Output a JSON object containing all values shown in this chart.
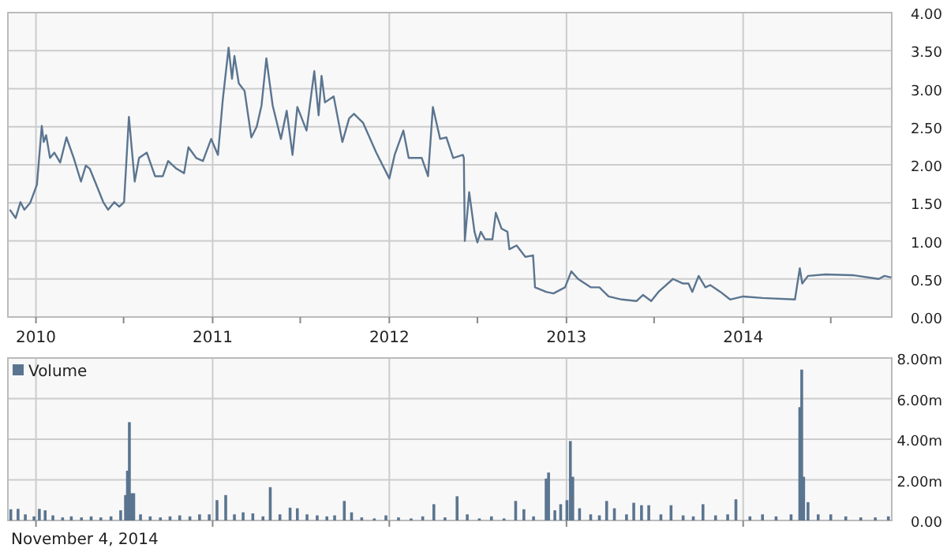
{
  "chart_data": [
    {
      "type": "line",
      "xlim": [
        "2009-11-04",
        "2014-11-04"
      ],
      "ylim": [
        0,
        4
      ],
      "xticks": [
        "2010",
        {
          "value": "2010-07-01",
          "label": null
        },
        "2011",
        {
          "value": "2011-07-01",
          "label": null
        },
        "2012",
        {
          "value": "2012-07-01",
          "label": null
        },
        "2013",
        {
          "value": "2013-07-01",
          "label": null
        },
        "2014",
        {
          "value": "2014-07-01",
          "label": null
        }
      ],
      "yticks": [
        {
          "value": 0,
          "label": "0.00"
        },
        {
          "value": 0.5,
          "label": "0.50"
        },
        {
          "value": 1,
          "label": "1.00"
        },
        {
          "value": 1.5,
          "label": "1.50"
        },
        {
          "value": 2,
          "label": "2.00"
        },
        {
          "value": 2.5,
          "label": "2.50"
        },
        {
          "value": 3,
          "label": "3.00"
        },
        {
          "value": 3.5,
          "label": "3.50"
        },
        {
          "value": 4,
          "label": "4.00"
        }
      ],
      "grid": true,
      "marker": "none",
      "line_style": "solid",
      "series": [
        {
          "color": "#5b7590",
          "x": [
            "2009-11-08",
            "2009-11-20",
            "2009-11-30",
            "2009-12-08",
            "2009-12-20",
            "2010-01-03",
            "2010-01-13",
            "2010-01-17",
            "2010-01-22",
            "2010-01-30",
            "2010-02-08",
            "2010-02-20",
            "2010-03-05",
            "2010-03-20",
            "2010-04-04",
            "2010-04-14",
            "2010-04-22",
            "2010-05-03",
            "2010-05-20",
            "2010-05-30",
            "2010-06-12",
            "2010-06-22",
            "2010-07-02",
            "2010-07-12",
            "2010-07-24",
            "2010-08-02",
            "2010-08-18",
            "2010-09-04",
            "2010-09-20",
            "2010-10-01",
            "2010-10-18",
            "2010-11-03",
            "2010-11-12",
            "2010-11-28",
            "2010-12-12",
            "2010-12-29",
            "2011-01-12",
            "2011-01-22",
            "2011-02-03",
            "2011-02-10",
            "2011-02-15",
            "2011-02-24",
            "2011-03-08",
            "2011-03-22",
            "2011-04-02",
            "2011-04-12",
            "2011-04-22",
            "2011-05-05",
            "2011-05-22",
            "2011-06-03",
            "2011-06-15",
            "2011-06-25",
            "2011-07-14",
            "2011-07-30",
            "2011-08-08",
            "2011-08-14",
            "2011-08-21",
            "2011-09-08",
            "2011-09-26",
            "2011-10-10",
            "2011-10-20",
            "2011-11-08",
            "2011-12-05",
            "2012-01-01",
            "2012-01-12",
            "2012-01-30",
            "2012-02-10",
            "2012-03-08",
            "2012-03-21",
            "2012-03-31",
            "2012-04-15",
            "2012-04-28",
            "2012-05-12",
            "2012-06-01",
            "2012-06-03",
            "2012-06-05",
            "2012-06-14",
            "2012-06-25",
            "2012-07-01",
            "2012-07-08",
            "2012-07-17",
            "2012-08-01",
            "2012-08-08",
            "2012-08-20",
            "2012-09-01",
            "2012-09-05",
            "2012-09-20",
            "2012-10-08",
            "2012-10-24",
            "2012-10-28",
            "2012-11-20",
            "2012-12-05",
            "2012-12-29",
            "2013-01-11",
            "2013-01-25",
            "2013-02-20",
            "2013-03-10",
            "2013-03-29",
            "2013-04-25",
            "2013-05-26",
            "2013-06-08",
            "2013-06-25",
            "2013-07-10",
            "2013-08-09",
            "2013-08-30",
            "2013-09-10",
            "2013-09-18",
            "2013-10-01",
            "2013-10-15",
            "2013-10-25",
            "2013-11-15",
            "2013-12-05",
            "2014-01-01",
            "2014-02-10",
            "2014-04-18",
            "2014-04-28",
            "2014-05-03",
            "2014-05-15",
            "2014-06-20",
            "2014-08-15",
            "2014-10-08",
            "2014-10-20",
            "2014-11-03"
          ],
          "values": [
            1.41,
            1.3,
            1.51,
            1.41,
            1.5,
            1.74,
            2.51,
            2.3,
            2.39,
            2.09,
            2.16,
            2.03,
            2.36,
            2.09,
            1.78,
            1.99,
            1.95,
            1.78,
            1.51,
            1.41,
            1.51,
            1.45,
            1.51,
            2.63,
            1.78,
            2.09,
            2.16,
            1.85,
            1.85,
            2.05,
            1.95,
            1.89,
            2.23,
            2.09,
            2.05,
            2.34,
            2.13,
            2.86,
            3.54,
            3.13,
            3.43,
            3.07,
            2.97,
            2.36,
            2.5,
            2.78,
            3.4,
            2.78,
            2.34,
            2.71,
            2.13,
            2.76,
            2.45,
            3.23,
            2.65,
            3.17,
            2.82,
            2.9,
            2.3,
            2.61,
            2.67,
            2.55,
            2.16,
            1.82,
            2.13,
            2.45,
            2.09,
            2.09,
            1.85,
            2.76,
            2.34,
            2.36,
            2.09,
            2.13,
            2.09,
            1.0,
            1.64,
            1.12,
            0.98,
            1.12,
            1.02,
            1.02,
            1.37,
            1.16,
            1.12,
            0.89,
            0.94,
            0.79,
            0.81,
            0.39,
            0.33,
            0.31,
            0.39,
            0.6,
            0.5,
            0.39,
            0.39,
            0.27,
            0.23,
            0.21,
            0.29,
            0.21,
            0.33,
            0.5,
            0.44,
            0.44,
            0.33,
            0.54,
            0.39,
            0.42,
            0.33,
            0.23,
            0.27,
            0.25,
            0.23,
            0.64,
            0.44,
            0.54,
            0.56,
            0.55,
            0.5,
            0.54,
            0.52
          ]
        }
      ]
    },
    {
      "type": "bar",
      "xlim": [
        "2009-11-04",
        "2014-11-04"
      ],
      "ylim": [
        0,
        8
      ],
      "xticks": [
        "2010",
        "2011",
        "2012",
        "2013",
        "2014"
      ],
      "yticks": [
        {
          "value": 0,
          "label": "0.00"
        },
        {
          "value": 2,
          "label": "2.00m"
        },
        {
          "value": 4,
          "label": "4.00m"
        },
        {
          "value": 6,
          "label": "6.00m"
        },
        {
          "value": 8,
          "label": "8.00m"
        }
      ],
      "tick_labels": "y",
      "grid": true,
      "legend": "top left",
      "annotations": [
        "November 4, 2014"
      ],
      "series": [
        {
          "name": "Volume",
          "color": "#5b7590",
          "x": [
            "2009-11-10",
            "2009-11-25",
            "2009-12-10",
            "2009-12-28",
            "2010-01-08",
            "2010-01-20",
            "2010-02-05",
            "2010-02-25",
            "2010-03-15",
            "2010-04-05",
            "2010-04-25",
            "2010-05-15",
            "2010-06-05",
            "2010-06-25",
            "2010-07-05",
            "2010-07-09",
            "2010-07-13",
            "2010-07-17",
            "2010-07-22",
            "2010-08-05",
            "2010-08-25",
            "2010-09-15",
            "2010-10-05",
            "2010-10-25",
            "2010-11-15",
            "2010-12-05",
            "2010-12-25",
            "2011-01-10",
            "2011-01-28",
            "2011-02-15",
            "2011-03-05",
            "2011-03-25",
            "2011-04-15",
            "2011-04-30",
            "2011-05-20",
            "2011-06-10",
            "2011-06-25",
            "2011-07-15",
            "2011-08-05",
            "2011-08-25",
            "2011-09-10",
            "2011-09-30",
            "2011-10-15",
            "2011-11-05",
            "2011-12-01",
            "2011-12-25",
            "2012-01-20",
            "2012-02-15",
            "2012-03-10",
            "2012-04-02",
            "2012-04-25",
            "2012-05-20",
            "2012-06-10",
            "2012-07-05",
            "2012-07-30",
            "2012-08-25",
            "2012-09-18",
            "2012-10-05",
            "2012-10-25",
            "2012-11-20",
            "2012-11-25",
            "2012-12-08",
            "2012-12-20",
            "2013-01-02",
            "2013-01-09",
            "2013-01-14",
            "2013-01-28",
            "2013-02-20",
            "2013-03-10",
            "2013-03-25",
            "2013-04-10",
            "2013-05-05",
            "2013-05-20",
            "2013-06-05",
            "2013-06-20",
            "2013-07-15",
            "2013-08-05",
            "2013-08-30",
            "2013-09-20",
            "2013-10-10",
            "2013-11-05",
            "2013-11-30",
            "2013-12-17",
            "2014-01-15",
            "2014-02-10",
            "2014-03-10",
            "2014-04-10",
            "2014-04-28",
            "2014-05-02",
            "2014-05-06",
            "2014-05-15",
            "2014-06-05",
            "2014-07-01",
            "2014-08-01",
            "2014-09-01",
            "2014-10-01",
            "2014-10-28"
          ],
          "values": [
            0.55,
            0.57,
            0.3,
            0.2,
            0.57,
            0.5,
            0.25,
            0.15,
            0.2,
            0.15,
            0.2,
            0.15,
            0.2,
            0.5,
            1.25,
            2.45,
            4.84,
            1.34,
            1.34,
            0.3,
            0.2,
            0.15,
            0.2,
            0.25,
            0.2,
            0.3,
            0.3,
            1.0,
            1.25,
            0.3,
            0.4,
            0.35,
            0.2,
            1.64,
            0.3,
            0.63,
            0.6,
            0.3,
            0.25,
            0.2,
            0.25,
            0.96,
            0.4,
            0.15,
            0.1,
            0.25,
            0.15,
            0.1,
            0.2,
            0.8,
            0.15,
            1.19,
            0.3,
            0.1,
            0.2,
            0.1,
            0.96,
            0.55,
            0.2,
            2.06,
            2.36,
            0.5,
            0.8,
            1.0,
            3.91,
            2.15,
            0.6,
            0.3,
            0.25,
            0.96,
            0.6,
            0.3,
            0.87,
            0.75,
            0.75,
            0.3,
            0.75,
            0.25,
            0.2,
            0.8,
            0.25,
            0.3,
            1.04,
            0.2,
            0.3,
            0.2,
            0.3,
            5.58,
            7.43,
            2.15,
            0.9,
            0.3,
            0.3,
            0.2,
            0.15,
            0.15,
            0.2
          ]
        }
      ]
    }
  ]
}
